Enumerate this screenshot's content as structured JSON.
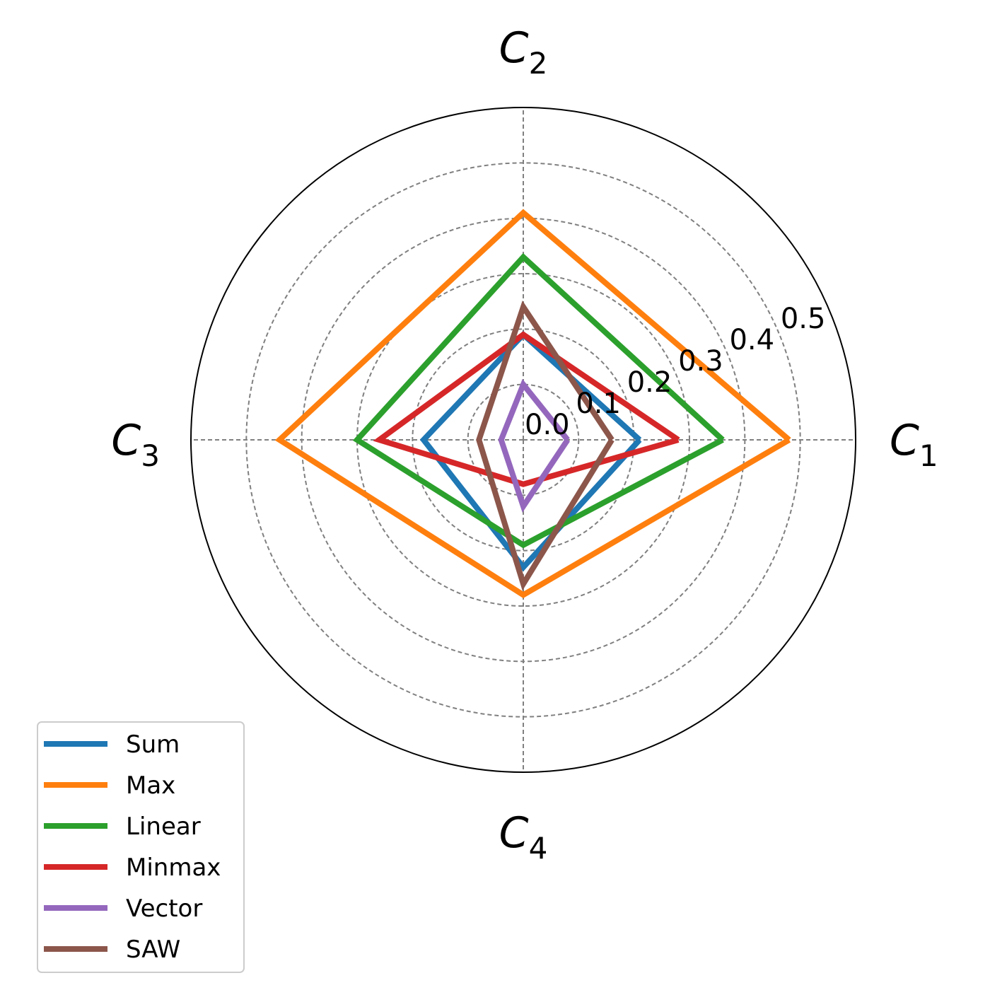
{
  "chart_data": {
    "type": "radar",
    "axes": [
      {
        "main": "C",
        "sub": "1"
      },
      {
        "main": "C",
        "sub": "2"
      },
      {
        "main": "C",
        "sub": "3"
      },
      {
        "main": "C",
        "sub": "4"
      }
    ],
    "r_ticks": [
      "0.0",
      "0.1",
      "0.2",
      "0.3",
      "0.4",
      "0.5"
    ],
    "r_tick_values": [
      0.0,
      0.1,
      0.2,
      0.3,
      0.4,
      0.5
    ],
    "rlim": [
      0,
      0.6
    ],
    "grid": true,
    "legend_position": "lower-left",
    "series": [
      {
        "name": "Sum",
        "color": "#1f77b4",
        "values": [
          0.21,
          0.19,
          0.18,
          0.23
        ]
      },
      {
        "name": "Max",
        "color": "#ff7f0e",
        "values": [
          0.48,
          0.41,
          0.44,
          0.28
        ]
      },
      {
        "name": "Linear",
        "color": "#2ca02c",
        "values": [
          0.36,
          0.33,
          0.3,
          0.19
        ]
      },
      {
        "name": "Minmax",
        "color": "#d62728",
        "values": [
          0.28,
          0.19,
          0.26,
          0.08
        ]
      },
      {
        "name": "Vector",
        "color": "#9467bd",
        "values": [
          0.08,
          0.1,
          0.04,
          0.12
        ]
      },
      {
        "name": "SAW",
        "color": "#8c564b",
        "values": [
          0.16,
          0.24,
          0.08,
          0.26
        ]
      }
    ]
  }
}
